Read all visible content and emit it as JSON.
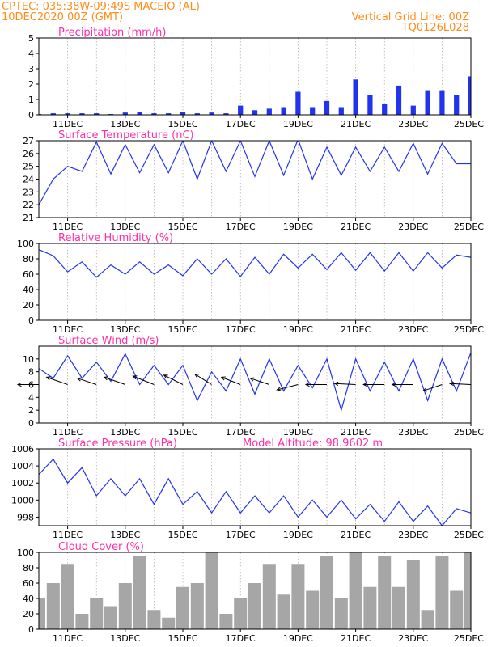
{
  "header": {
    "line1_left": "CPTEC:   035:38W-09:49S   MACEIO (AL)",
    "line2_left": "10DEC2020 00Z (GMT)",
    "line1_right": "Vertical Grid Line: 00Z",
    "line2_right": "TQ0126L028"
  },
  "colors": {
    "header": "#ff8c1a",
    "panel_title": "#ff2fa8",
    "series": "#2233ee",
    "cloud": "#a6a6a6",
    "arrow": "#000000",
    "grid": "#999999"
  },
  "x_axis": {
    "start": "10DEC2020 00Z",
    "end": "25DEC2020 00Z",
    "ticks": [
      "11DEC",
      "13DEC",
      "15DEC",
      "17DEC",
      "19DEC",
      "21DEC",
      "23DEC",
      "25DEC"
    ]
  },
  "chart_data": [
    {
      "id": "precipitation",
      "type": "bar",
      "title": "Precipitation (mm/h)",
      "ylim": [
        0,
        5
      ],
      "yticks": [
        0,
        1,
        2,
        3,
        4,
        5
      ],
      "x": [
        "10DEC2020 00Z",
        "10DEC2020 12Z",
        "11DEC2020 00Z",
        "11DEC2020 12Z",
        "12DEC2020 00Z",
        "12DEC2020 12Z",
        "13DEC2020 00Z",
        "13DEC2020 12Z",
        "14DEC2020 00Z",
        "14DEC2020 12Z",
        "15DEC2020 00Z",
        "15DEC2020 12Z",
        "16DEC2020 00Z",
        "16DEC2020 12Z",
        "17DEC2020 00Z",
        "17DEC2020 12Z",
        "18DEC2020 00Z",
        "18DEC2020 12Z",
        "19DEC2020 00Z",
        "19DEC2020 12Z",
        "20DEC2020 00Z",
        "20DEC2020 12Z",
        "21DEC2020 00Z",
        "21DEC2020 12Z",
        "22DEC2020 00Z",
        "22DEC2020 12Z",
        "23DEC2020 00Z",
        "23DEC2020 12Z",
        "24DEC2020 00Z",
        "24DEC2020 12Z",
        "25DEC2020 00Z"
      ],
      "values": [
        0.05,
        0.1,
        0.1,
        0.1,
        0.1,
        0.05,
        0.15,
        0.2,
        0.1,
        0.1,
        0.2,
        0.1,
        0.15,
        0.1,
        0.6,
        0.3,
        0.4,
        0.5,
        1.5,
        0.5,
        0.9,
        0.5,
        2.3,
        1.3,
        0.7,
        1.9,
        0.6,
        1.6,
        1.6,
        1.3,
        2.5
      ]
    },
    {
      "id": "temperature",
      "type": "line",
      "title": "Surface Temperature (nC)",
      "ylim": [
        21,
        27
      ],
      "yticks": [
        21,
        22,
        23,
        24,
        25,
        26,
        27
      ],
      "x": [
        "10DEC2020 00Z",
        "10DEC2020 12Z",
        "11DEC2020 00Z",
        "11DEC2020 12Z",
        "12DEC2020 00Z",
        "12DEC2020 12Z",
        "13DEC2020 00Z",
        "13DEC2020 12Z",
        "14DEC2020 00Z",
        "14DEC2020 12Z",
        "15DEC2020 00Z",
        "15DEC2020 12Z",
        "16DEC2020 00Z",
        "16DEC2020 12Z",
        "17DEC2020 00Z",
        "17DEC2020 12Z",
        "18DEC2020 00Z",
        "18DEC2020 12Z",
        "19DEC2020 00Z",
        "19DEC2020 12Z",
        "20DEC2020 00Z",
        "20DEC2020 12Z",
        "21DEC2020 00Z",
        "21DEC2020 12Z",
        "22DEC2020 00Z",
        "22DEC2020 12Z",
        "23DEC2020 00Z",
        "23DEC2020 12Z",
        "24DEC2020 00Z",
        "24DEC2020 12Z",
        "25DEC2020 00Z"
      ],
      "values": [
        22.0,
        24.0,
        25.0,
        24.6,
        26.9,
        24.4,
        26.7,
        24.5,
        26.7,
        24.5,
        27.0,
        24.0,
        27.0,
        24.6,
        27.0,
        24.2,
        27.0,
        24.3,
        27.1,
        24.0,
        26.5,
        24.3,
        26.5,
        24.6,
        26.5,
        24.6,
        26.8,
        24.4,
        26.8,
        25.2,
        25.2
      ]
    },
    {
      "id": "humidity",
      "type": "line",
      "title": "Relative Humidity (%)",
      "ylim": [
        0,
        100
      ],
      "yticks": [
        0,
        20,
        40,
        60,
        80,
        100
      ],
      "x": [
        "10DEC2020 00Z",
        "10DEC2020 12Z",
        "11DEC2020 00Z",
        "11DEC2020 12Z",
        "12DEC2020 00Z",
        "12DEC2020 12Z",
        "13DEC2020 00Z",
        "13DEC2020 12Z",
        "14DEC2020 00Z",
        "14DEC2020 12Z",
        "15DEC2020 00Z",
        "15DEC2020 12Z",
        "16DEC2020 00Z",
        "16DEC2020 12Z",
        "17DEC2020 00Z",
        "17DEC2020 12Z",
        "18DEC2020 00Z",
        "18DEC2020 12Z",
        "19DEC2020 00Z",
        "19DEC2020 12Z",
        "20DEC2020 00Z",
        "20DEC2020 12Z",
        "21DEC2020 00Z",
        "21DEC2020 12Z",
        "22DEC2020 00Z",
        "22DEC2020 12Z",
        "23DEC2020 00Z",
        "23DEC2020 12Z",
        "24DEC2020 00Z",
        "24DEC2020 12Z",
        "25DEC2020 00Z"
      ],
      "values": [
        92,
        84,
        63,
        76,
        56,
        72,
        60,
        76,
        60,
        72,
        58,
        80,
        60,
        80,
        57,
        82,
        60,
        86,
        68,
        86,
        66,
        88,
        65,
        88,
        64,
        88,
        64,
        88,
        68,
        85,
        82
      ]
    },
    {
      "id": "wind",
      "type": "line",
      "title": "Surface Wind (m/s)",
      "ylim": [
        0,
        12
      ],
      "yticks": [
        0,
        2,
        4,
        6,
        8,
        10
      ],
      "x": [
        "10DEC2020 00Z",
        "10DEC2020 12Z",
        "11DEC2020 00Z",
        "11DEC2020 12Z",
        "12DEC2020 00Z",
        "12DEC2020 12Z",
        "13DEC2020 00Z",
        "13DEC2020 12Z",
        "14DEC2020 00Z",
        "14DEC2020 12Z",
        "15DEC2020 00Z",
        "15DEC2020 12Z",
        "16DEC2020 00Z",
        "16DEC2020 12Z",
        "17DEC2020 00Z",
        "17DEC2020 12Z",
        "18DEC2020 00Z",
        "18DEC2020 12Z",
        "19DEC2020 00Z",
        "19DEC2020 12Z",
        "20DEC2020 00Z",
        "20DEC2020 12Z",
        "21DEC2020 00Z",
        "21DEC2020 12Z",
        "22DEC2020 00Z",
        "22DEC2020 12Z",
        "23DEC2020 00Z",
        "23DEC2020 12Z",
        "24DEC2020 00Z",
        "24DEC2020 12Z",
        "25DEC2020 00Z"
      ],
      "values": [
        8.5,
        7.0,
        10.5,
        7.0,
        9.5,
        6.5,
        10.8,
        6.0,
        9.0,
        6.0,
        9.0,
        3.5,
        8.0,
        5.0,
        10.0,
        4.5,
        10.0,
        5.0,
        9.0,
        5.5,
        10.0,
        2.0,
        10.0,
        5.0,
        9.5,
        5.0,
        10.0,
        3.5,
        10.0,
        5.0,
        11.0
      ],
      "arrows": {
        "x": [
          "10DEC2020 00Z",
          "11DEC2020 00Z",
          "12DEC2020 00Z",
          "13DEC2020 00Z",
          "14DEC2020 00Z",
          "15DEC2020 00Z",
          "16DEC2020 00Z",
          "17DEC2020 00Z",
          "18DEC2020 00Z",
          "19DEC2020 00Z",
          "20DEC2020 00Z",
          "21DEC2020 00Z",
          "22DEC2020 00Z",
          "23DEC2020 00Z",
          "24DEC2020 00Z",
          "25DEC2020 00Z"
        ],
        "dx": [
          -1.0,
          -1.0,
          -0.9,
          -1.0,
          -1.0,
          -0.9,
          -0.8,
          -0.9,
          -0.9,
          -1.0,
          -1.0,
          -1.0,
          -1.0,
          -1.0,
          -0.9,
          -1.0
        ],
        "dy": [
          0.0,
          0.35,
          0.3,
          0.35,
          0.4,
          0.45,
          0.5,
          0.35,
          0.3,
          -0.25,
          0.0,
          0.05,
          0.0,
          0.0,
          -0.3,
          0.05
        ]
      }
    },
    {
      "id": "pressure",
      "type": "line",
      "title": "Surface Pressure (hPa)",
      "annotation": "Model Altitude: 98.9602 m",
      "ylim": [
        997,
        1006
      ],
      "yticks": [
        998,
        1000,
        1002,
        1004,
        1006
      ],
      "x": [
        "10DEC2020 00Z",
        "10DEC2020 12Z",
        "11DEC2020 00Z",
        "11DEC2020 12Z",
        "12DEC2020 00Z",
        "12DEC2020 12Z",
        "13DEC2020 00Z",
        "13DEC2020 12Z",
        "14DEC2020 00Z",
        "14DEC2020 12Z",
        "15DEC2020 00Z",
        "15DEC2020 12Z",
        "16DEC2020 00Z",
        "16DEC2020 12Z",
        "17DEC2020 00Z",
        "17DEC2020 12Z",
        "18DEC2020 00Z",
        "18DEC2020 12Z",
        "19DEC2020 00Z",
        "19DEC2020 12Z",
        "20DEC2020 00Z",
        "20DEC2020 12Z",
        "21DEC2020 00Z",
        "21DEC2020 12Z",
        "22DEC2020 00Z",
        "22DEC2020 12Z",
        "23DEC2020 00Z",
        "23DEC2020 12Z",
        "24DEC2020 00Z",
        "24DEC2020 12Z",
        "25DEC2020 00Z"
      ],
      "values": [
        1003.0,
        1004.8,
        1002.0,
        1003.8,
        1000.5,
        1002.5,
        1000.5,
        1002.5,
        999.5,
        1002.5,
        999.5,
        1001.0,
        998.5,
        1001.0,
        998.5,
        1000.5,
        998.5,
        1000.5,
        998.0,
        1000.0,
        998.0,
        1000.0,
        997.8,
        999.5,
        997.5,
        999.8,
        997.5,
        999.3,
        997.0,
        999.0,
        998.5
      ]
    },
    {
      "id": "cloud",
      "type": "bar",
      "title": "Cloud Cover (%)",
      "ylim": [
        0,
        100
      ],
      "yticks": [
        0,
        20,
        40,
        60,
        80,
        100
      ],
      "x": [
        "10DEC2020 00Z",
        "10DEC2020 12Z",
        "11DEC2020 00Z",
        "11DEC2020 12Z",
        "12DEC2020 00Z",
        "12DEC2020 12Z",
        "13DEC2020 00Z",
        "13DEC2020 12Z",
        "14DEC2020 00Z",
        "14DEC2020 12Z",
        "15DEC2020 00Z",
        "15DEC2020 12Z",
        "16DEC2020 00Z",
        "16DEC2020 12Z",
        "17DEC2020 00Z",
        "17DEC2020 12Z",
        "18DEC2020 00Z",
        "18DEC2020 12Z",
        "19DEC2020 00Z",
        "19DEC2020 12Z",
        "20DEC2020 00Z",
        "20DEC2020 12Z",
        "21DEC2020 00Z",
        "21DEC2020 12Z",
        "22DEC2020 00Z",
        "22DEC2020 12Z",
        "23DEC2020 00Z",
        "23DEC2020 12Z",
        "24DEC2020 00Z",
        "24DEC2020 12Z",
        "25DEC2020 00Z"
      ],
      "values": [
        40,
        60,
        85,
        20,
        40,
        30,
        60,
        95,
        25,
        15,
        55,
        60,
        100,
        20,
        40,
        60,
        85,
        45,
        85,
        50,
        95,
        40,
        100,
        55,
        95,
        55,
        90,
        25,
        95,
        50,
        100
      ]
    }
  ]
}
